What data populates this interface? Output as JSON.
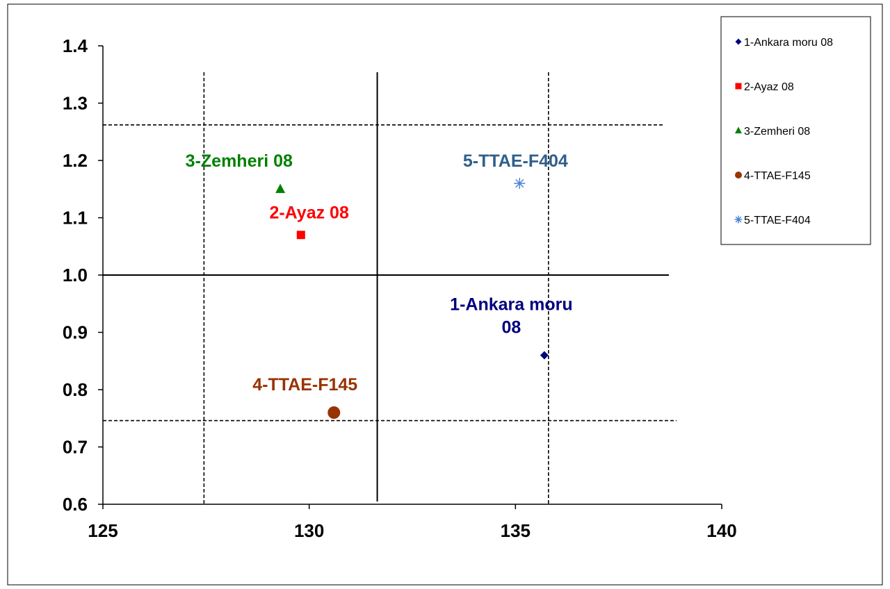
{
  "chart_data": {
    "type": "scatter",
    "title": "",
    "xlabel": "",
    "ylabel": "",
    "xlim": [
      125,
      140
    ],
    "ylim": [
      0.6,
      1.4
    ],
    "x_ticks": [
      125,
      130,
      135,
      140
    ],
    "y_ticks": [
      0.6,
      0.7,
      0.8,
      0.9,
      1.0,
      1.1,
      1.2,
      1.3,
      1.4
    ],
    "x_tick_labels": [
      "125",
      "130",
      "135",
      "140"
    ],
    "y_tick_labels": [
      "0.6",
      "0.7",
      "0.8",
      "0.9",
      "1.0",
      "1.1",
      "1.2",
      "1.3",
      "1.4"
    ],
    "grid": false,
    "legend_position": "right",
    "series": [
      {
        "name": "1-Ankara moru 08",
        "marker": "diamond",
        "color": "#000080",
        "x": [
          135.7
        ],
        "y": [
          0.86
        ]
      },
      {
        "name": "2-Ayaz 08",
        "marker": "square",
        "color": "#ff0000",
        "x": [
          129.8
        ],
        "y": [
          1.07
        ]
      },
      {
        "name": "3-Zemheri 08",
        "marker": "triangle",
        "color": "#008000",
        "x": [
          129.3
        ],
        "y": [
          1.15
        ]
      },
      {
        "name": "4-TTAE-F145",
        "marker": "circle",
        "color": "#993300",
        "x": [
          130.6
        ],
        "y": [
          0.76
        ]
      },
      {
        "name": "5-TTAE-F404",
        "marker": "asterisk",
        "color": "#4a7fd6",
        "x": [
          135.1
        ],
        "y": [
          1.16
        ]
      }
    ],
    "annotations": [
      {
        "lines": [
          "3-Zemheri 08"
        ],
        "color": "#008000",
        "x": 128.3,
        "y": 1.2
      },
      {
        "lines": [
          "2-Ayaz 08"
        ],
        "color": "#ff0000",
        "x": 130.0,
        "y": 1.11
      },
      {
        "lines": [
          "5-TTAE-F404"
        ],
        "color": "#2f5f8a",
        "x": 135.0,
        "y": 1.2
      },
      {
        "lines": [
          "1-Ankara moru",
          "08"
        ],
        "color": "#000080",
        "x": 134.9,
        "y": 0.95
      },
      {
        "lines": [
          "4-TTAE-F145"
        ],
        "color": "#993300",
        "x": 129.9,
        "y": 0.81
      }
    ],
    "reference_lines": [
      {
        "orientation": "horizontal",
        "value": 1.0,
        "style": "solid"
      },
      {
        "orientation": "horizontal",
        "value": 1.262,
        "style": "dashed"
      },
      {
        "orientation": "horizontal",
        "value": 0.746,
        "style": "dashed"
      },
      {
        "orientation": "vertical",
        "value": 131.65,
        "style": "solid"
      },
      {
        "orientation": "vertical",
        "value": 127.45,
        "style": "dashed"
      },
      {
        "orientation": "vertical",
        "value": 135.8,
        "style": "dashed"
      }
    ]
  }
}
